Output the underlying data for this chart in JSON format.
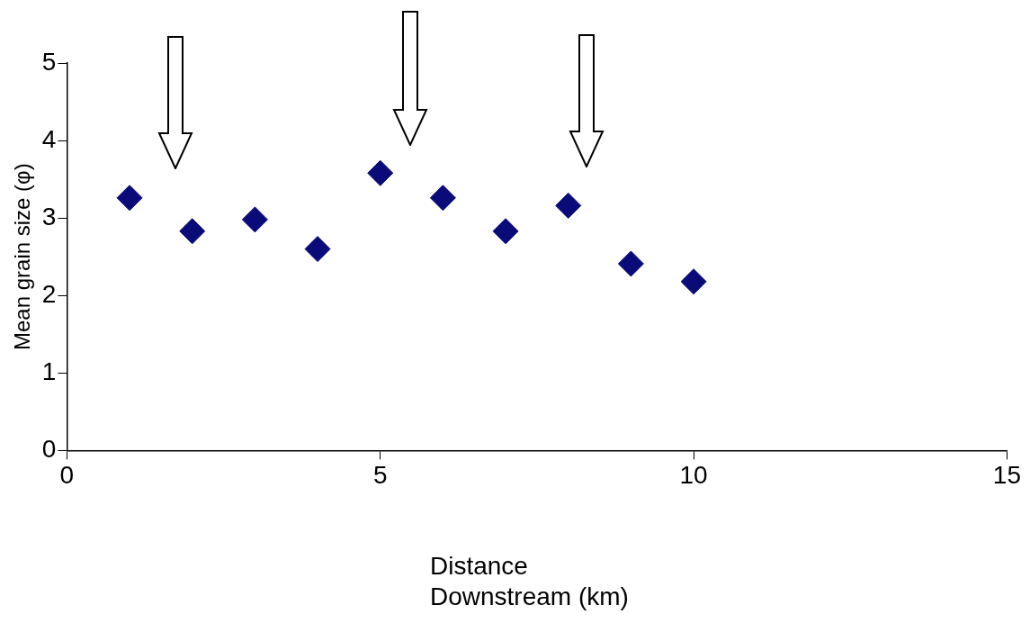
{
  "chart_data": {
    "type": "scatter",
    "xlabel": "Distance Downstream (km)",
    "ylabel": "Mean grain size (φ)",
    "x": [
      1,
      2,
      3,
      4,
      5,
      6,
      7,
      8,
      9,
      10
    ],
    "values": [
      3.26,
      2.83,
      2.98,
      2.6,
      3.58,
      3.26,
      2.83,
      3.16,
      2.41,
      2.18
    ],
    "color": "#0a0a78",
    "marker": "diamond",
    "xlim": [
      0,
      15
    ],
    "xticks": [
      0,
      5,
      10,
      15
    ],
    "ylim": [
      0,
      5
    ],
    "yticks": [
      0,
      1,
      2,
      3,
      4,
      5
    ],
    "grid": false,
    "legend": false
  }
}
